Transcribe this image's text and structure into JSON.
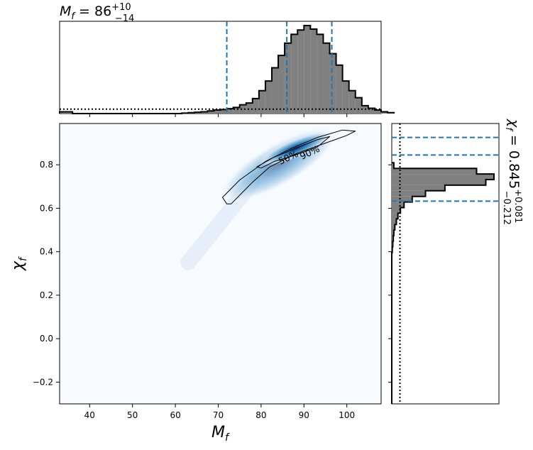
{
  "chart_data": {
    "type": "heatmap",
    "title": "",
    "panels": {
      "top_histogram": {
        "title_main": "M",
        "title_sub": "f",
        "title_value": " = 86",
        "title_upper": "+10",
        "title_lower": "−14",
        "variable": "M_f",
        "median": 86,
        "credible_interval": [
          72,
          96.5
        ],
        "bin_edges_start": 33,
        "bin_width": 1.5,
        "counts": [
          0.02,
          0.02,
          0,
          0,
          0,
          0,
          0,
          0,
          0,
          0,
          0,
          0,
          0,
          0,
          0,
          0,
          0,
          0,
          0,
          0.005,
          0.01,
          0.015,
          0.02,
          0.03,
          0.04,
          0.045,
          0.055,
          0.07,
          0.1,
          0.12,
          0.17,
          0.26,
          0.37,
          0.52,
          0.66,
          0.8,
          0.9,
          0.95,
          1.0,
          0.96,
          0.9,
          0.8,
          0.68,
          0.55,
          0.37,
          0.26,
          0.18,
          0.09,
          0.06,
          0.04,
          0.02,
          0.01
        ],
        "prior_level": 0.05
      },
      "joint": {
        "xlabel_main": "M",
        "xlabel_sub": "f",
        "ylabel_main": "χ",
        "ylabel_sub": "f",
        "xlim": [
          33,
          108
        ],
        "ylim": [
          -0.3,
          0.99
        ],
        "x_ticks": [
          40,
          50,
          60,
          70,
          80,
          90,
          100
        ],
        "x_tick_labels": [
          "40",
          "50",
          "60",
          "70",
          "80",
          "90",
          "100"
        ],
        "y_ticks": [
          -0.2,
          0.0,
          0.2,
          0.4,
          0.6,
          0.8
        ],
        "y_tick_labels": [
          "−0.2",
          "0.0",
          "0.2",
          "0.4",
          "0.6",
          "0.8"
        ],
        "density_peak": {
          "x": 88,
          "y": 0.875
        },
        "contours": [
          {
            "label": "50%",
            "points": [
              [
                79,
                0.79
              ],
              [
                83,
                0.835
              ],
              [
                88,
                0.875
              ],
              [
                93,
                0.915
              ],
              [
                96,
                0.93
              ],
              [
                93,
                0.88
              ],
              [
                88,
                0.845
              ],
              [
                83,
                0.815
              ],
              [
                80,
                0.785
              ],
              [
                79,
                0.79
              ]
            ]
          },
          {
            "label": "90%",
            "points": [
              [
                72,
                0.62
              ],
              [
                71,
                0.65
              ],
              [
                75,
                0.73
              ],
              [
                81,
                0.815
              ],
              [
                87,
                0.875
              ],
              [
                93,
                0.925
              ],
              [
                99,
                0.96
              ],
              [
                102,
                0.955
              ],
              [
                100,
                0.935
              ],
              [
                95,
                0.9
              ],
              [
                88,
                0.85
              ],
              [
                82,
                0.79
              ],
              [
                78,
                0.72
              ],
              [
                75,
                0.66
              ],
              [
                73,
                0.62
              ],
              [
                72,
                0.62
              ]
            ]
          }
        ]
      },
      "right_histogram": {
        "title_main": "χ",
        "title_sub": "f",
        "title_value": " = 0.845",
        "title_upper": "+0.081",
        "title_lower": "−0.212",
        "variable": "chi_f",
        "median": 0.845,
        "credible_interval": [
          0.633,
          0.926
        ],
        "bin_edges_start": -0.3,
        "bin_width": 0.0258,
        "counts": [
          0,
          0,
          0,
          0,
          0,
          0,
          0,
          0,
          0,
          0,
          0,
          0,
          0,
          0,
          0,
          0,
          0,
          0,
          0,
          0,
          0,
          0,
          0,
          0,
          0,
          0,
          0,
          0.005,
          0.01,
          0.015,
          0.02,
          0.03,
          0.045,
          0.06,
          0.085,
          0.12,
          0.2,
          0.33,
          0.52,
          0.92,
          1.0,
          0.83,
          0.02
        ],
        "prior_level": 0.08
      }
    },
    "colors": {
      "histogram_fill": "#808080",
      "median_line": "#1f77b4",
      "density_low": "#f7fbff",
      "density_high": "#08306b"
    }
  }
}
